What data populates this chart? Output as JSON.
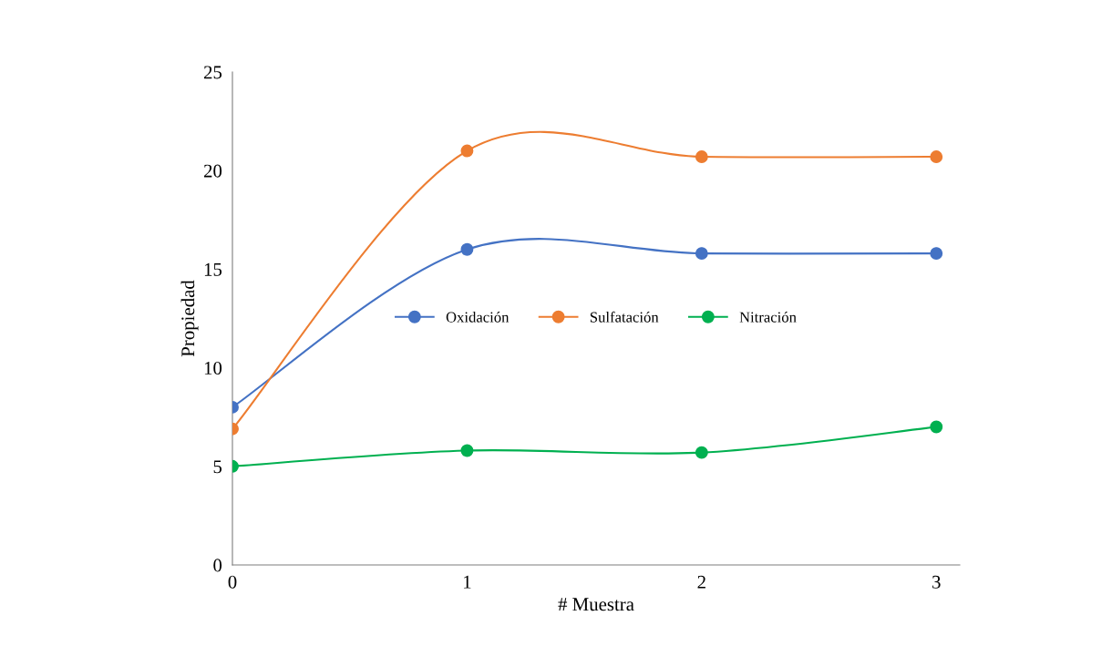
{
  "chart_data": {
    "type": "line",
    "xlabel": "# Muestra",
    "ylabel": "Propiedad",
    "x": [
      0,
      1,
      2,
      3
    ],
    "series": [
      {
        "name": "Oxidación",
        "color": "#4472c4",
        "values": [
          8,
          16,
          15.8,
          15.8
        ]
      },
      {
        "name": "Sulfatación",
        "color": "#ed7d31",
        "values": [
          6.9,
          21,
          20.7,
          20.7
        ]
      },
      {
        "name": "Nitración",
        "color": "#00b050",
        "values": [
          5,
          5.8,
          5.7,
          7
        ]
      }
    ],
    "xlim": [
      0,
      3.1
    ],
    "xticks": [
      0,
      1,
      2,
      3
    ],
    "ylim": [
      0,
      25
    ],
    "yticks": [
      0,
      5,
      10,
      15,
      20,
      25
    ],
    "grid": false,
    "legend": "center",
    "marker": "circle",
    "line_style": "solid"
  }
}
